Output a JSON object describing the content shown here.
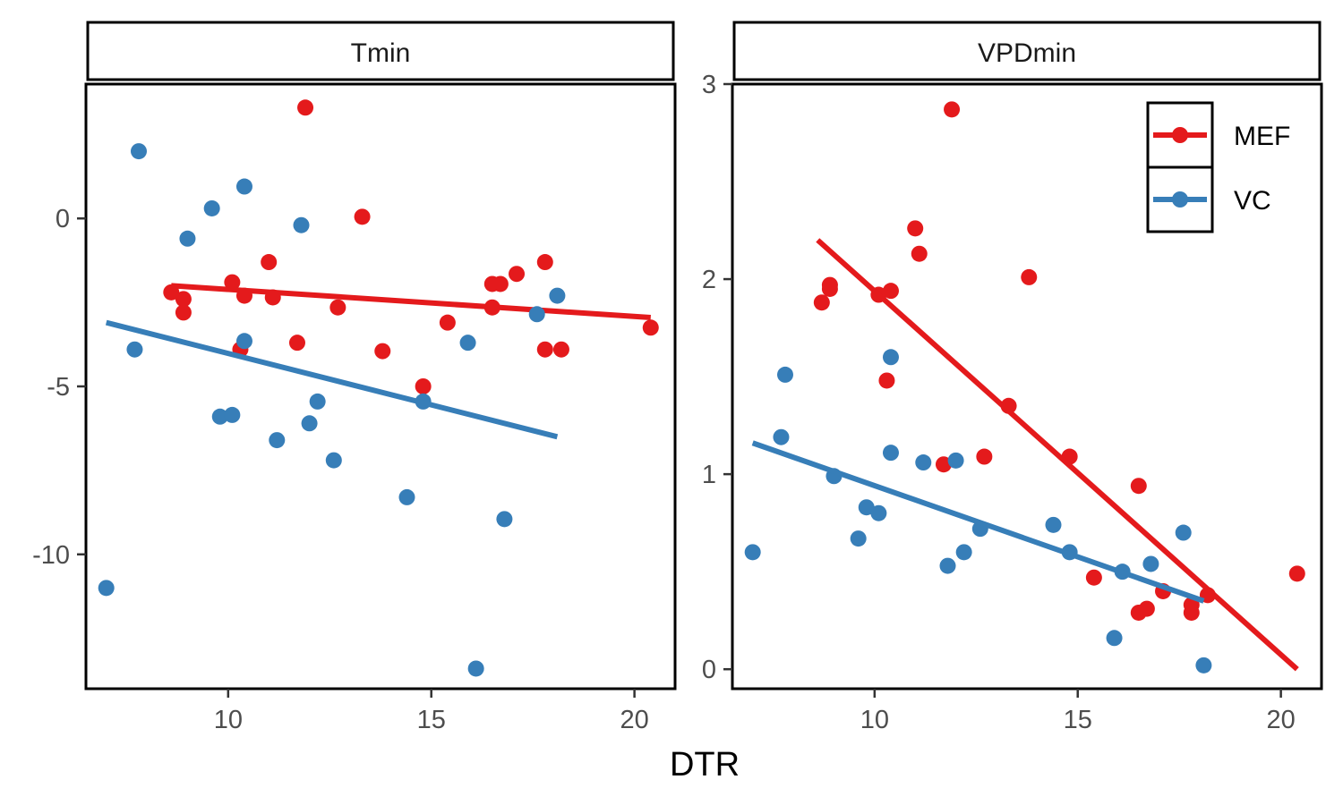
{
  "colors": {
    "MEF": "#e41a1c",
    "VC": "#377eb8"
  },
  "x_axis_title": "DTR",
  "legend": {
    "position": "top-right",
    "items": [
      "MEF",
      "VC"
    ]
  },
  "chart_data": [
    {
      "type": "scatter",
      "panel_title": "Tmin",
      "xlabel": "DTR",
      "xlim": [
        6.5,
        21
      ],
      "ylim": [
        -14,
        4
      ],
      "x_ticks": [
        10,
        15,
        20
      ],
      "y_ticks": [
        0,
        -5,
        -10
      ],
      "series": [
        {
          "name": "MEF",
          "points": [
            [
              8.6,
              -2.2
            ],
            [
              8.9,
              -2.4
            ],
            [
              8.9,
              -2.8
            ],
            [
              10.1,
              -1.9
            ],
            [
              10.3,
              -3.9
            ],
            [
              10.4,
              -2.3
            ],
            [
              11.0,
              -1.3
            ],
            [
              11.1,
              -2.35
            ],
            [
              11.7,
              -3.7
            ],
            [
              11.9,
              3.3
            ],
            [
              12.7,
              -2.65
            ],
            [
              13.3,
              0.05
            ],
            [
              13.8,
              -3.95
            ],
            [
              14.8,
              -5.0
            ],
            [
              15.4,
              -3.1
            ],
            [
              16.5,
              -2.65
            ],
            [
              16.5,
              -1.95
            ],
            [
              16.7,
              -1.95
            ],
            [
              17.1,
              -1.65
            ],
            [
              17.8,
              -1.3
            ],
            [
              17.8,
              -3.9
            ],
            [
              18.2,
              -3.9
            ],
            [
              20.4,
              -3.25
            ]
          ],
          "trend": [
            [
              8.6,
              -2.0
            ],
            [
              20.4,
              -2.95
            ]
          ]
        },
        {
          "name": "VC",
          "points": [
            [
              7.0,
              -11.0
            ],
            [
              7.7,
              -3.9
            ],
            [
              7.8,
              2.0
            ],
            [
              9.0,
              -0.6
            ],
            [
              9.6,
              0.3
            ],
            [
              9.8,
              -5.9
            ],
            [
              10.1,
              -5.85
            ],
            [
              10.4,
              0.95
            ],
            [
              10.4,
              -3.65
            ],
            [
              11.2,
              -6.6
            ],
            [
              11.8,
              -0.2
            ],
            [
              12.0,
              -6.1
            ],
            [
              12.2,
              -5.45
            ],
            [
              12.6,
              -7.2
            ],
            [
              14.4,
              -8.3
            ],
            [
              14.8,
              -5.45
            ],
            [
              15.9,
              -3.7
            ],
            [
              16.1,
              -13.4
            ],
            [
              16.8,
              -8.95
            ],
            [
              17.6,
              -2.85
            ],
            [
              18.1,
              -2.3
            ]
          ],
          "trend": [
            [
              7.0,
              -3.1
            ],
            [
              18.1,
              -6.5
            ]
          ]
        }
      ]
    },
    {
      "type": "scatter",
      "panel_title": "VPDmin",
      "xlabel": "DTR",
      "xlim": [
        6.5,
        21
      ],
      "ylim": [
        -0.1,
        3.0
      ],
      "x_ticks": [
        10,
        15,
        20
      ],
      "y_ticks": [
        0,
        1,
        2,
        3
      ],
      "series": [
        {
          "name": "MEF",
          "points": [
            [
              8.7,
              1.88
            ],
            [
              8.9,
              1.95
            ],
            [
              8.9,
              1.97
            ],
            [
              10.1,
              1.92
            ],
            [
              10.3,
              1.48
            ],
            [
              10.4,
              1.94
            ],
            [
              11.0,
              2.26
            ],
            [
              11.1,
              2.13
            ],
            [
              11.7,
              1.05
            ],
            [
              11.9,
              2.87
            ],
            [
              12.7,
              1.09
            ],
            [
              13.3,
              1.35
            ],
            [
              13.8,
              2.01
            ],
            [
              14.8,
              1.09
            ],
            [
              15.4,
              0.47
            ],
            [
              16.5,
              0.29
            ],
            [
              16.5,
              0.94
            ],
            [
              16.7,
              0.31
            ],
            [
              17.1,
              0.4
            ],
            [
              17.8,
              0.33
            ],
            [
              17.8,
              0.29
            ],
            [
              18.2,
              0.38
            ],
            [
              20.4,
              0.49
            ]
          ],
          "trend": [
            [
              8.6,
              2.2
            ],
            [
              20.4,
              0.0
            ]
          ]
        },
        {
          "name": "VC",
          "points": [
            [
              7.0,
              0.6
            ],
            [
              7.7,
              1.19
            ],
            [
              7.8,
              1.51
            ],
            [
              9.0,
              0.99
            ],
            [
              9.6,
              0.67
            ],
            [
              9.8,
              0.83
            ],
            [
              10.1,
              0.8
            ],
            [
              10.4,
              1.6
            ],
            [
              10.4,
              1.11
            ],
            [
              11.2,
              1.06
            ],
            [
              11.8,
              0.53
            ],
            [
              12.0,
              1.07
            ],
            [
              12.2,
              0.6
            ],
            [
              12.6,
              0.72
            ],
            [
              14.4,
              0.74
            ],
            [
              14.8,
              0.6
            ],
            [
              15.9,
              0.16
            ],
            [
              16.1,
              0.5
            ],
            [
              16.8,
              0.54
            ],
            [
              17.6,
              0.7
            ],
            [
              18.1,
              0.02
            ]
          ],
          "trend": [
            [
              7.0,
              1.16
            ],
            [
              18.1,
              0.35
            ]
          ]
        }
      ]
    }
  ]
}
